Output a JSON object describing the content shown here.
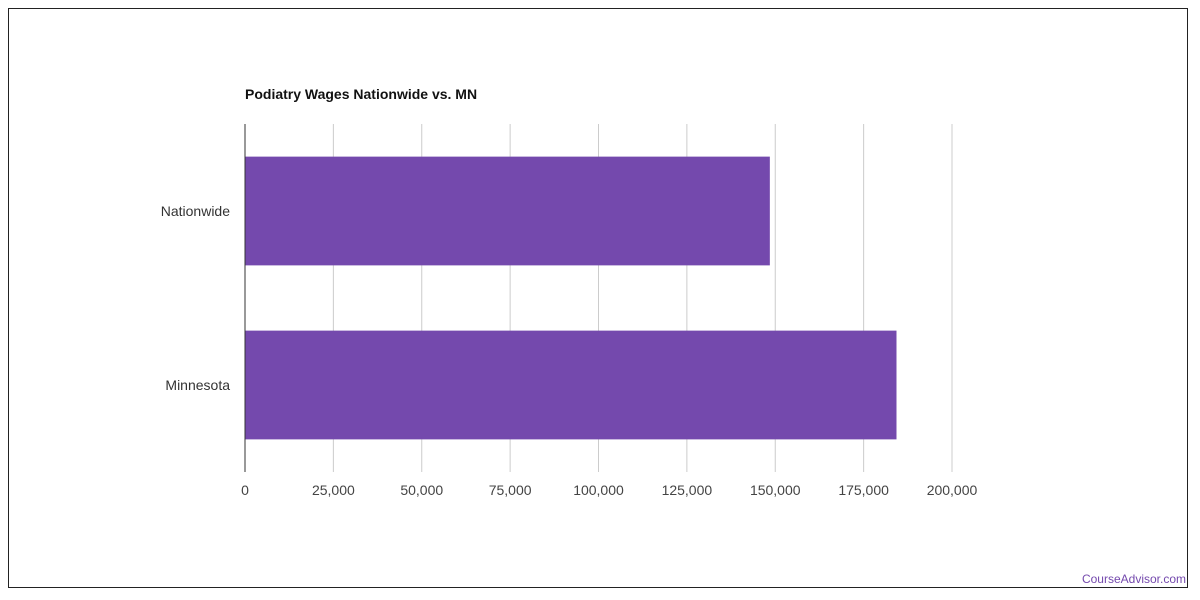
{
  "chart_data": {
    "type": "bar",
    "orientation": "horizontal",
    "title": "Podiatry Wages Nationwide vs. MN",
    "categories": [
      "Nationwide",
      "Minnesota"
    ],
    "values": [
      148470,
      184300
    ],
    "xlim": [
      0,
      200000
    ],
    "x_ticks": [
      0,
      25000,
      50000,
      75000,
      100000,
      125000,
      150000,
      175000,
      200000
    ],
    "x_tick_labels": [
      "0",
      "25,000",
      "50,000",
      "75,000",
      "100,000",
      "125,000",
      "150,000",
      "175,000",
      "200,000"
    ],
    "xlabel": "",
    "ylabel": "",
    "grid": true,
    "bar_color": "#7449ad"
  },
  "watermark": "CourseAdvisor.com"
}
